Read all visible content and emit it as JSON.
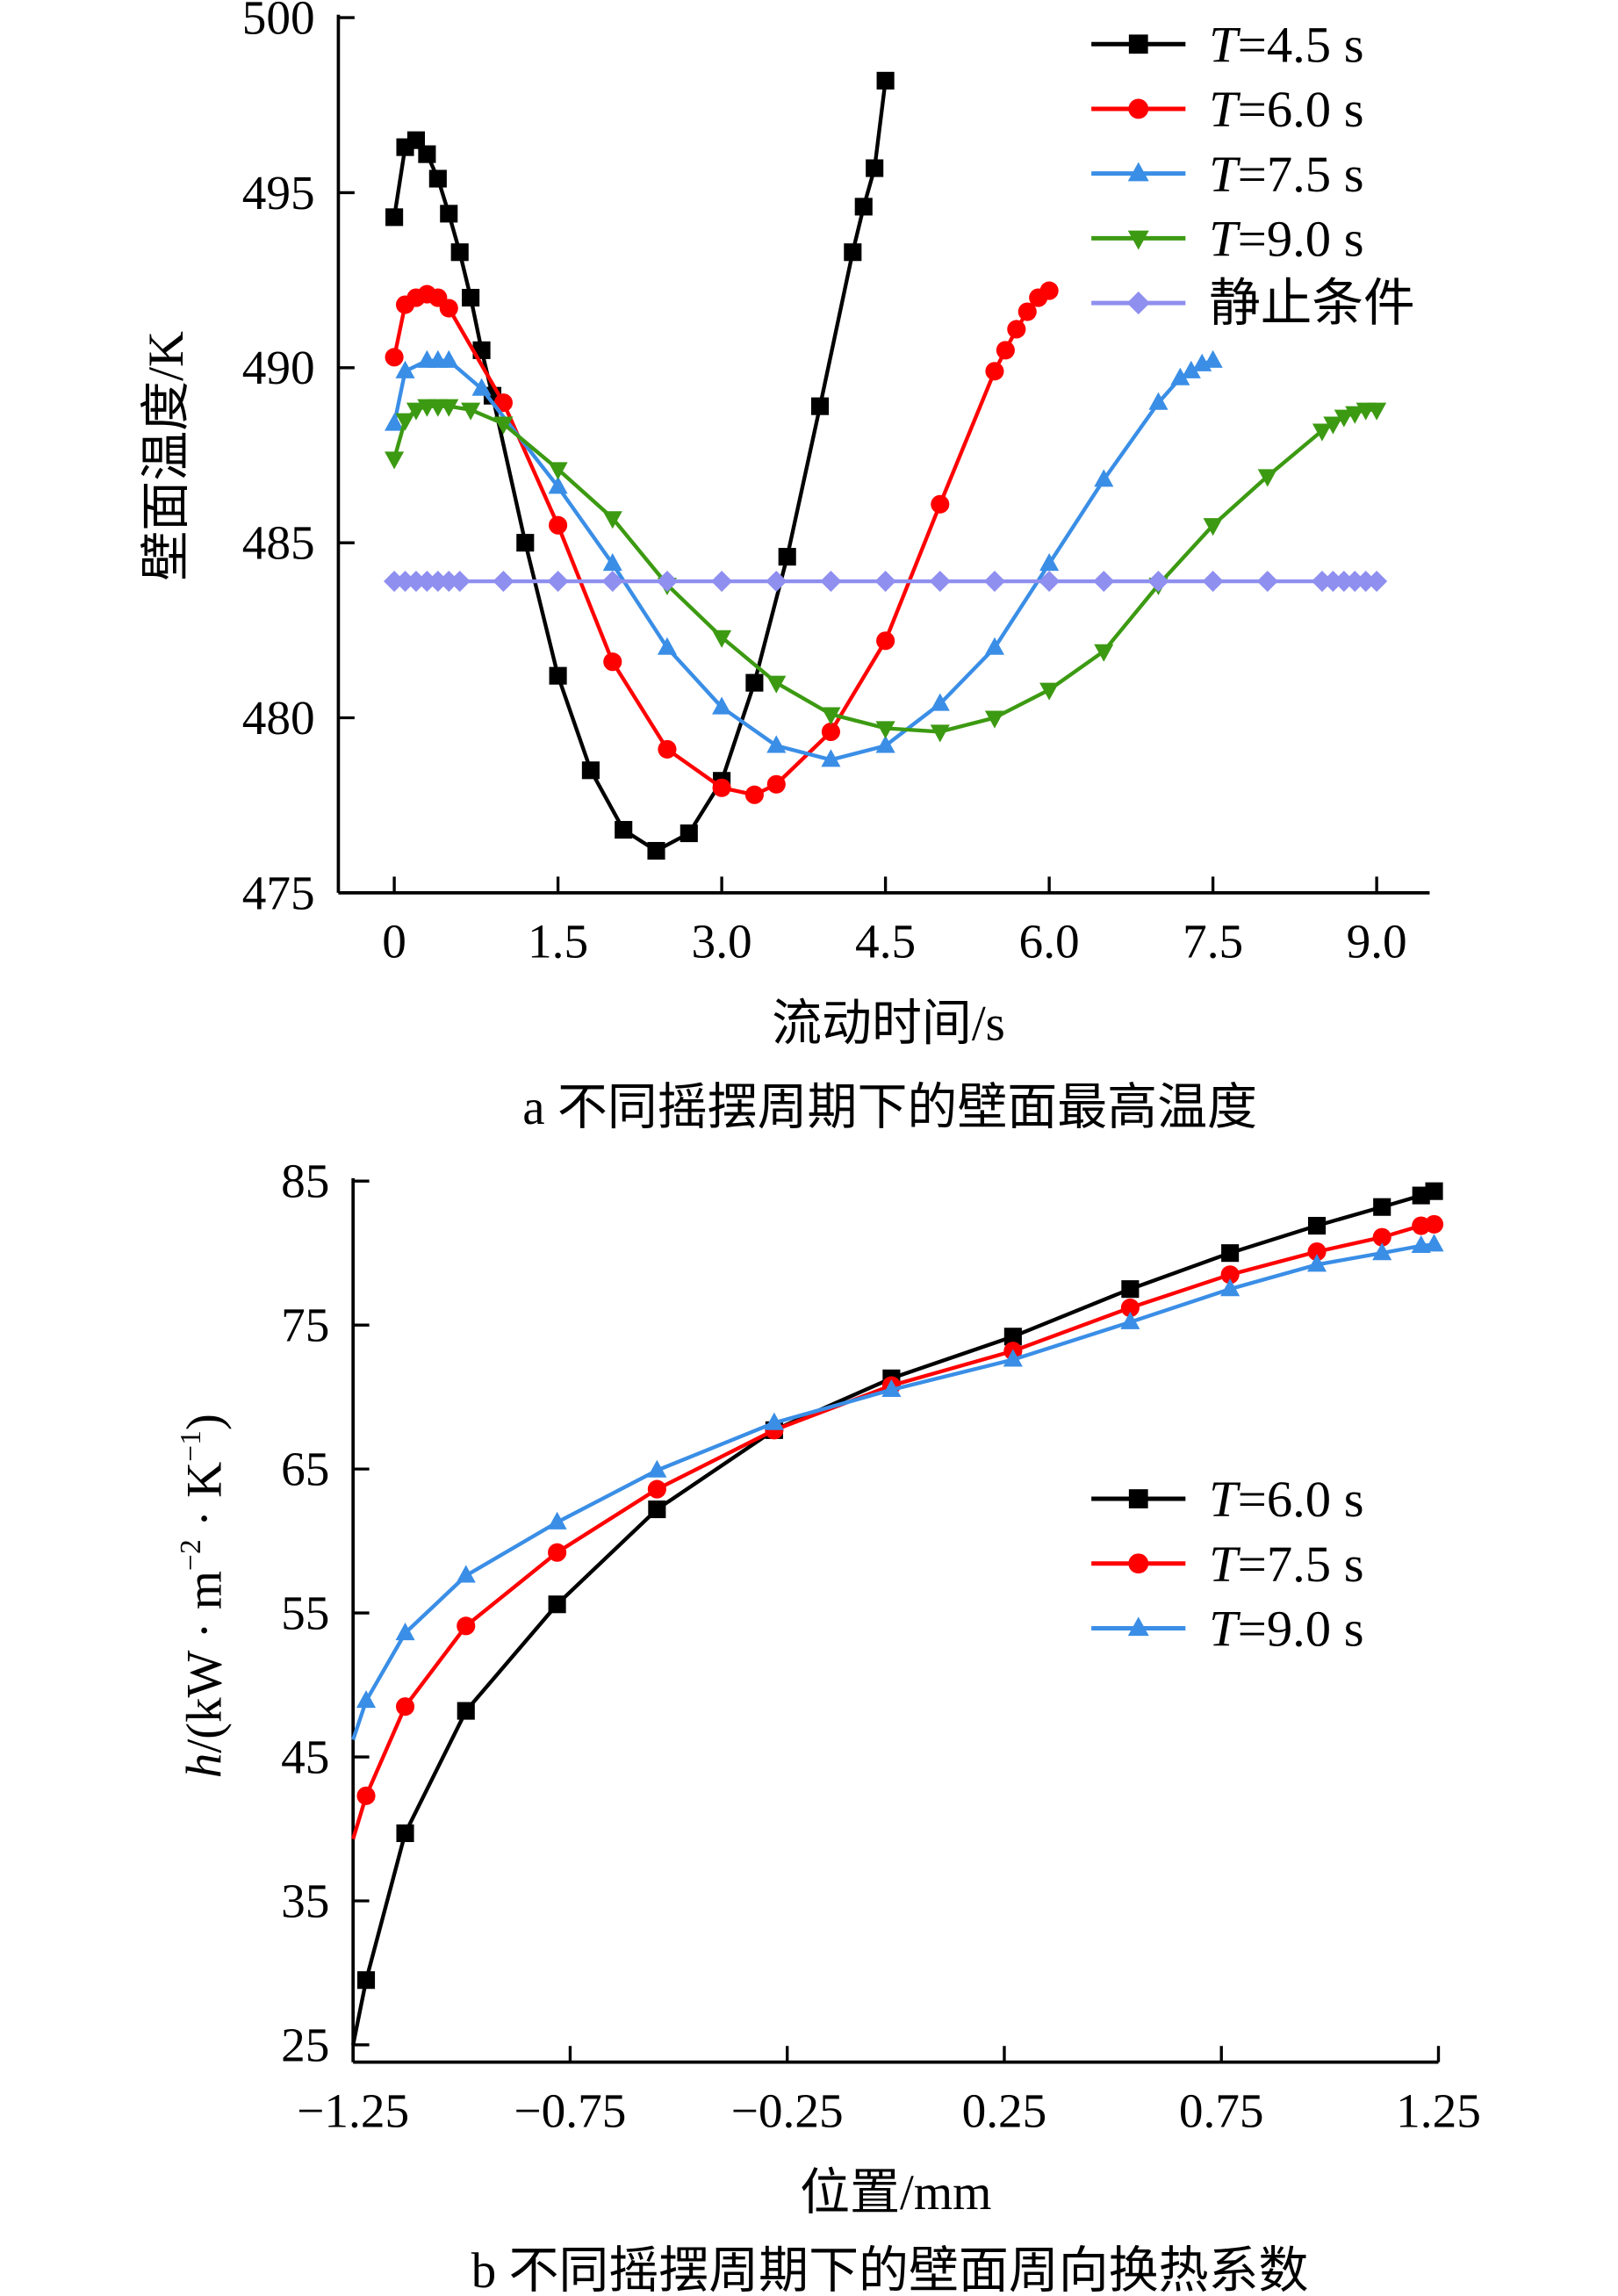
{
  "chart_data": [
    {
      "type": "line",
      "caption": "a 不同摇摆周期下的壁面最高温度",
      "xlabel": "流动时间/s",
      "ylabel": "壁面温度/K",
      "xlim": [
        0,
        9.0
      ],
      "ylim": [
        475,
        500
      ],
      "xticks": [
        0,
        1.5,
        3.0,
        4.5,
        6.0,
        7.5,
        9.0
      ],
      "xtick_labels": [
        "0",
        "1.5",
        "3.0",
        "4.5",
        "6.0",
        "7.5",
        "9.0"
      ],
      "yticks": [
        475,
        480,
        485,
        490,
        495,
        500
      ],
      "ytick_labels": [
        "475",
        "480",
        "485",
        "490",
        "495",
        "500"
      ],
      "grid": false,
      "legend_position": "top-right",
      "series": [
        {
          "name": "T=4.5 s",
          "color": "#000000",
          "marker": "square",
          "x": [
            0,
            0.1,
            0.2,
            0.3,
            0.4,
            0.5,
            0.6,
            0.7,
            0.8,
            0.9,
            1.2,
            1.5,
            1.8,
            2.1,
            2.4,
            2.7,
            3.0,
            3.3,
            3.6,
            3.9,
            4.2,
            4.3,
            4.4,
            4.5
          ],
          "y": [
            494.3,
            496.3,
            496.5,
            496.1,
            495.4,
            494.4,
            493.3,
            492.0,
            490.5,
            489.2,
            485.0,
            481.2,
            478.5,
            476.8,
            476.2,
            476.7,
            478.2,
            481.0,
            484.6,
            488.9,
            493.3,
            494.6,
            495.7,
            498.2
          ]
        },
        {
          "name": "T=6.0 s",
          "color": "#ff0000",
          "marker": "circle",
          "x": [
            0,
            0.1,
            0.2,
            0.3,
            0.4,
            0.5,
            1.0,
            1.5,
            2.0,
            2.5,
            3.0,
            3.3,
            3.5,
            4.0,
            4.5,
            5.0,
            5.5,
            5.6,
            5.7,
            5.8,
            5.9,
            6.0
          ],
          "y": [
            490.3,
            491.8,
            492.0,
            492.1,
            492.0,
            491.7,
            489.0,
            485.5,
            481.6,
            479.1,
            478.0,
            477.8,
            478.1,
            479.6,
            482.2,
            486.1,
            489.9,
            490.5,
            491.1,
            491.6,
            492.0,
            492.2
          ]
        },
        {
          "name": "T=7.5 s",
          "color": "#3a8ee6",
          "marker": "triangle-up",
          "x": [
            0,
            0.1,
            0.3,
            0.4,
            0.5,
            0.8,
            1.5,
            2.0,
            2.5,
            3.0,
            3.5,
            4.0,
            4.5,
            5.0,
            5.5,
            6.0,
            6.5,
            7.0,
            7.2,
            7.3,
            7.4,
            7.5
          ],
          "y": [
            488.4,
            489.9,
            490.2,
            490.2,
            490.2,
            489.4,
            486.6,
            484.4,
            482.0,
            480.3,
            479.2,
            478.8,
            479.2,
            480.4,
            482.0,
            484.4,
            486.8,
            489.0,
            489.7,
            489.9,
            490.1,
            490.2
          ]
        },
        {
          "name": "T=9.0 s",
          "color": "#3c9a12",
          "marker": "triangle-down",
          "x": [
            0,
            0.1,
            0.2,
            0.3,
            0.4,
            0.5,
            0.7,
            1.0,
            1.5,
            2.0,
            2.5,
            3.0,
            3.5,
            4.0,
            4.5,
            5.0,
            5.5,
            6.0,
            6.5,
            7.0,
            7.5,
            8.0,
            8.5,
            8.6,
            8.7,
            8.8,
            8.9,
            9.0
          ],
          "y": [
            487.4,
            488.5,
            488.8,
            488.9,
            488.9,
            488.9,
            488.8,
            488.4,
            487.1,
            485.7,
            483.8,
            482.3,
            481.0,
            480.1,
            479.7,
            479.6,
            480.0,
            480.8,
            481.9,
            483.8,
            485.5,
            486.9,
            488.2,
            488.4,
            488.6,
            488.7,
            488.8,
            488.8
          ]
        },
        {
          "name": "静止条件",
          "color": "#8f8ff0",
          "marker": "diamond",
          "x": [
            0,
            0.1,
            0.2,
            0.3,
            0.4,
            0.5,
            0.6,
            1.0,
            1.5,
            2.0,
            2.5,
            3.0,
            3.5,
            4.0,
            4.5,
            5.0,
            5.5,
            6.0,
            6.5,
            7.0,
            7.5,
            8.0,
            8.5,
            8.6,
            8.7,
            8.8,
            8.9,
            9.0
          ],
          "y": [
            483.9,
            483.9,
            483.9,
            483.9,
            483.9,
            483.9,
            483.9,
            483.9,
            483.9,
            483.9,
            483.9,
            483.9,
            483.9,
            483.9,
            483.9,
            483.9,
            483.9,
            483.9,
            483.9,
            483.9,
            483.9,
            483.9,
            483.9,
            483.9,
            483.9,
            483.9,
            483.9,
            483.9
          ]
        }
      ]
    },
    {
      "type": "line",
      "caption": "b 不同摇摆周期下的壁面周向换热系数",
      "xlabel": "位置/mm",
      "ylabel_parts": {
        "italic": "h",
        "a": "/(kW · m",
        "sup1": "−2",
        "b": " · K",
        "sup2": "−1",
        "c": ")"
      },
      "xlim": [
        -1.25,
        1.25
      ],
      "ylim": [
        23.8,
        85
      ],
      "xticks": [
        -1.25,
        -0.75,
        -0.25,
        0.25,
        0.75,
        1.25
      ],
      "xtick_labels": [
        "−1.25",
        "−0.75",
        "−0.25",
        "0.25",
        "0.75",
        "1.25"
      ],
      "yticks": [
        25,
        35,
        45,
        55,
        65,
        75,
        85
      ],
      "ytick_labels": [
        "25",
        "35",
        "45",
        "55",
        "65",
        "75",
        "85"
      ],
      "grid": false,
      "legend_position": "center-right",
      "series": [
        {
          "name": "T=6.0 s",
          "color": "#000000",
          "marker": "square",
          "x": [
            -1.25,
            -1.22,
            -1.13,
            -0.99,
            -0.78,
            -0.55,
            -0.28,
            -0.01,
            0.27,
            0.54,
            0.77,
            0.97,
            1.12,
            1.21,
            1.24
          ],
          "y": [
            25.0,
            29.5,
            39.7,
            48.2,
            55.6,
            62.2,
            67.7,
            71.3,
            74.2,
            77.5,
            80.0,
            81.9,
            83.2,
            84.0,
            84.3
          ]
        },
        {
          "name": "T=7.5 s",
          "color": "#ff0000",
          "marker": "circle",
          "x": [
            -1.25,
            -1.22,
            -1.13,
            -0.99,
            -0.78,
            -0.55,
            -0.28,
            -0.01,
            0.27,
            0.54,
            0.77,
            0.97,
            1.12,
            1.21,
            1.24
          ],
          "y": [
            39.3,
            42.3,
            48.5,
            54.1,
            59.2,
            63.6,
            67.7,
            70.8,
            73.2,
            76.2,
            78.5,
            80.1,
            81.1,
            81.9,
            82.0
          ]
        },
        {
          "name": "T=9.0 s",
          "color": "#3a8ee6",
          "marker": "triangle-up",
          "x": [
            -1.25,
            -1.22,
            -1.13,
            -0.99,
            -0.78,
            -0.55,
            -0.28,
            -0.01,
            0.27,
            0.54,
            0.77,
            0.97,
            1.12,
            1.21,
            1.24
          ],
          "y": [
            46.2,
            48.9,
            53.6,
            57.6,
            61.3,
            64.9,
            68.2,
            70.5,
            72.6,
            75.2,
            77.5,
            79.2,
            80.0,
            80.5,
            80.6
          ]
        }
      ]
    }
  ]
}
